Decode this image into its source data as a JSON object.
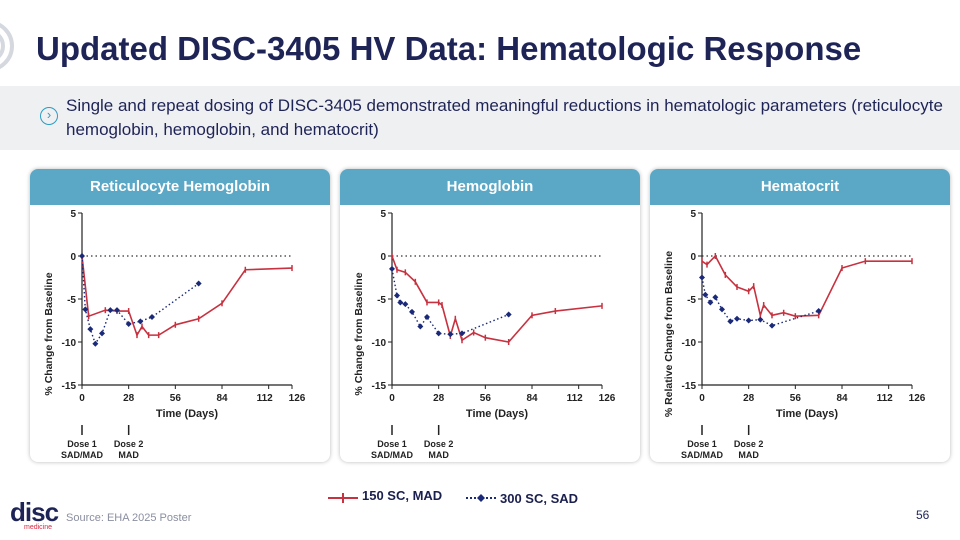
{
  "title": "Updated DISC-3405 HV Data: Hematologic Response",
  "summary": "Single and repeat dosing of DISC-3405 demonstrated meaningful reductions in hematologic parameters (reticulocyte hemoglobin, hemoglobin, and hematocrit)",
  "legend": {
    "mad_label": "150 SC, MAD",
    "sad_label": "300 SC, SAD"
  },
  "colors": {
    "mad": "#c8313f",
    "sad": "#1b2a78",
    "header": "#5aa8c6",
    "title": "#1f2457"
  },
  "footer": {
    "source": "Source: EHA 2025 Poster",
    "page": "56",
    "logo_main": "disc",
    "logo_sub": "medicine"
  },
  "chart_data": [
    {
      "type": "line",
      "title": "Reticulocyte Hemoglobin",
      "xlabel": "Time (Days)",
      "ylabel": "% Change from Baseline",
      "xticks": [
        0,
        28,
        56,
        84,
        112,
        126
      ],
      "yticks": [
        5,
        0,
        -5,
        -10,
        -15
      ],
      "xlim": [
        0,
        126
      ],
      "ylim": [
        -15,
        5
      ],
      "dose_markers": [
        {
          "day": 0,
          "label": "Dose 1",
          "sublabel": "SAD/MAD"
        },
        {
          "day": 28,
          "label": "Dose 2",
          "sublabel": "MAD"
        }
      ],
      "series": [
        {
          "name": "150 SC, MAD",
          "x": [
            0,
            4,
            14,
            21,
            28,
            33,
            36,
            40,
            46,
            56,
            70,
            84,
            98,
            126
          ],
          "y": [
            0,
            -7,
            -6.3,
            -6.4,
            -6.4,
            -9.2,
            -8.2,
            -9.2,
            -9.2,
            -8,
            -7.3,
            -5.5,
            -1.6,
            -1.4
          ]
        },
        {
          "name": "300 SC, SAD",
          "x": [
            0,
            2,
            5,
            8,
            12,
            17,
            21,
            28,
            35,
            42,
            70
          ],
          "y": [
            0,
            -6.2,
            -8.5,
            -10.2,
            -9,
            -6.3,
            -6.3,
            -7.9,
            -7.6,
            -7.1,
            -3.2
          ]
        }
      ]
    },
    {
      "type": "line",
      "title": "Hemoglobin",
      "xlabel": "Time (Days)",
      "ylabel": "% Change from Baseline",
      "xticks": [
        0,
        28,
        56,
        84,
        112,
        126
      ],
      "yticks": [
        5,
        0,
        -5,
        -10,
        -15
      ],
      "xlim": [
        0,
        126
      ],
      "ylim": [
        -15,
        5
      ],
      "dose_markers": [
        {
          "day": 0,
          "label": "Dose 1",
          "sublabel": "SAD/MAD"
        },
        {
          "day": 28,
          "label": "Dose 2",
          "sublabel": "MAD"
        }
      ],
      "series": [
        {
          "name": "150 SC, MAD",
          "x": [
            0,
            3,
            8,
            14,
            21,
            28,
            30,
            35,
            38,
            42,
            49,
            56,
            70,
            84,
            98,
            126
          ],
          "y": [
            0,
            -1.6,
            -1.9,
            -3,
            -5.4,
            -5.4,
            -5.7,
            -9.3,
            -7.3,
            -9.8,
            -8.9,
            -9.5,
            -10,
            -6.9,
            -6.4,
            -5.8
          ]
        },
        {
          "name": "300 SC, SAD",
          "x": [
            0,
            3,
            5,
            8,
            12,
            17,
            21,
            28,
            35,
            42,
            70
          ],
          "y": [
            -1.5,
            -4.6,
            -5.4,
            -5.6,
            -6.5,
            -8.2,
            -7.1,
            -9,
            -9.1,
            -9,
            -6.8
          ]
        }
      ]
    },
    {
      "type": "line",
      "title": "Hematocrit",
      "xlabel": "Time (Days)",
      "ylabel": "% Relative Change from Baseline",
      "xticks": [
        0,
        28,
        56,
        84,
        112,
        126
      ],
      "yticks": [
        5,
        0,
        -5,
        -10,
        -15
      ],
      "xlim": [
        0,
        126
      ],
      "ylim": [
        -15,
        5
      ],
      "dose_markers": [
        {
          "day": 0,
          "label": "Dose 1",
          "sublabel": "SAD/MAD"
        },
        {
          "day": 28,
          "label": "Dose 2",
          "sublabel": "MAD"
        }
      ],
      "series": [
        {
          "name": "150 SC, MAD",
          "x": [
            0,
            3,
            8,
            14,
            21,
            28,
            31,
            35,
            37,
            42,
            49,
            56,
            70,
            84,
            98,
            126
          ],
          "y": [
            -0.6,
            -1,
            0,
            -2.2,
            -3.6,
            -4.1,
            -3.5,
            -6.9,
            -5.7,
            -6.9,
            -6.6,
            -7,
            -6.9,
            -1.4,
            -0.6,
            -0.6
          ]
        },
        {
          "name": "300 SC, SAD",
          "x": [
            0,
            2,
            5,
            8,
            12,
            17,
            21,
            28,
            35,
            42,
            70
          ],
          "y": [
            -2.5,
            -4.5,
            -5.4,
            -4.8,
            -6.2,
            -7.6,
            -7.3,
            -7.5,
            -7.4,
            -8.1,
            -6.4
          ]
        }
      ]
    }
  ]
}
